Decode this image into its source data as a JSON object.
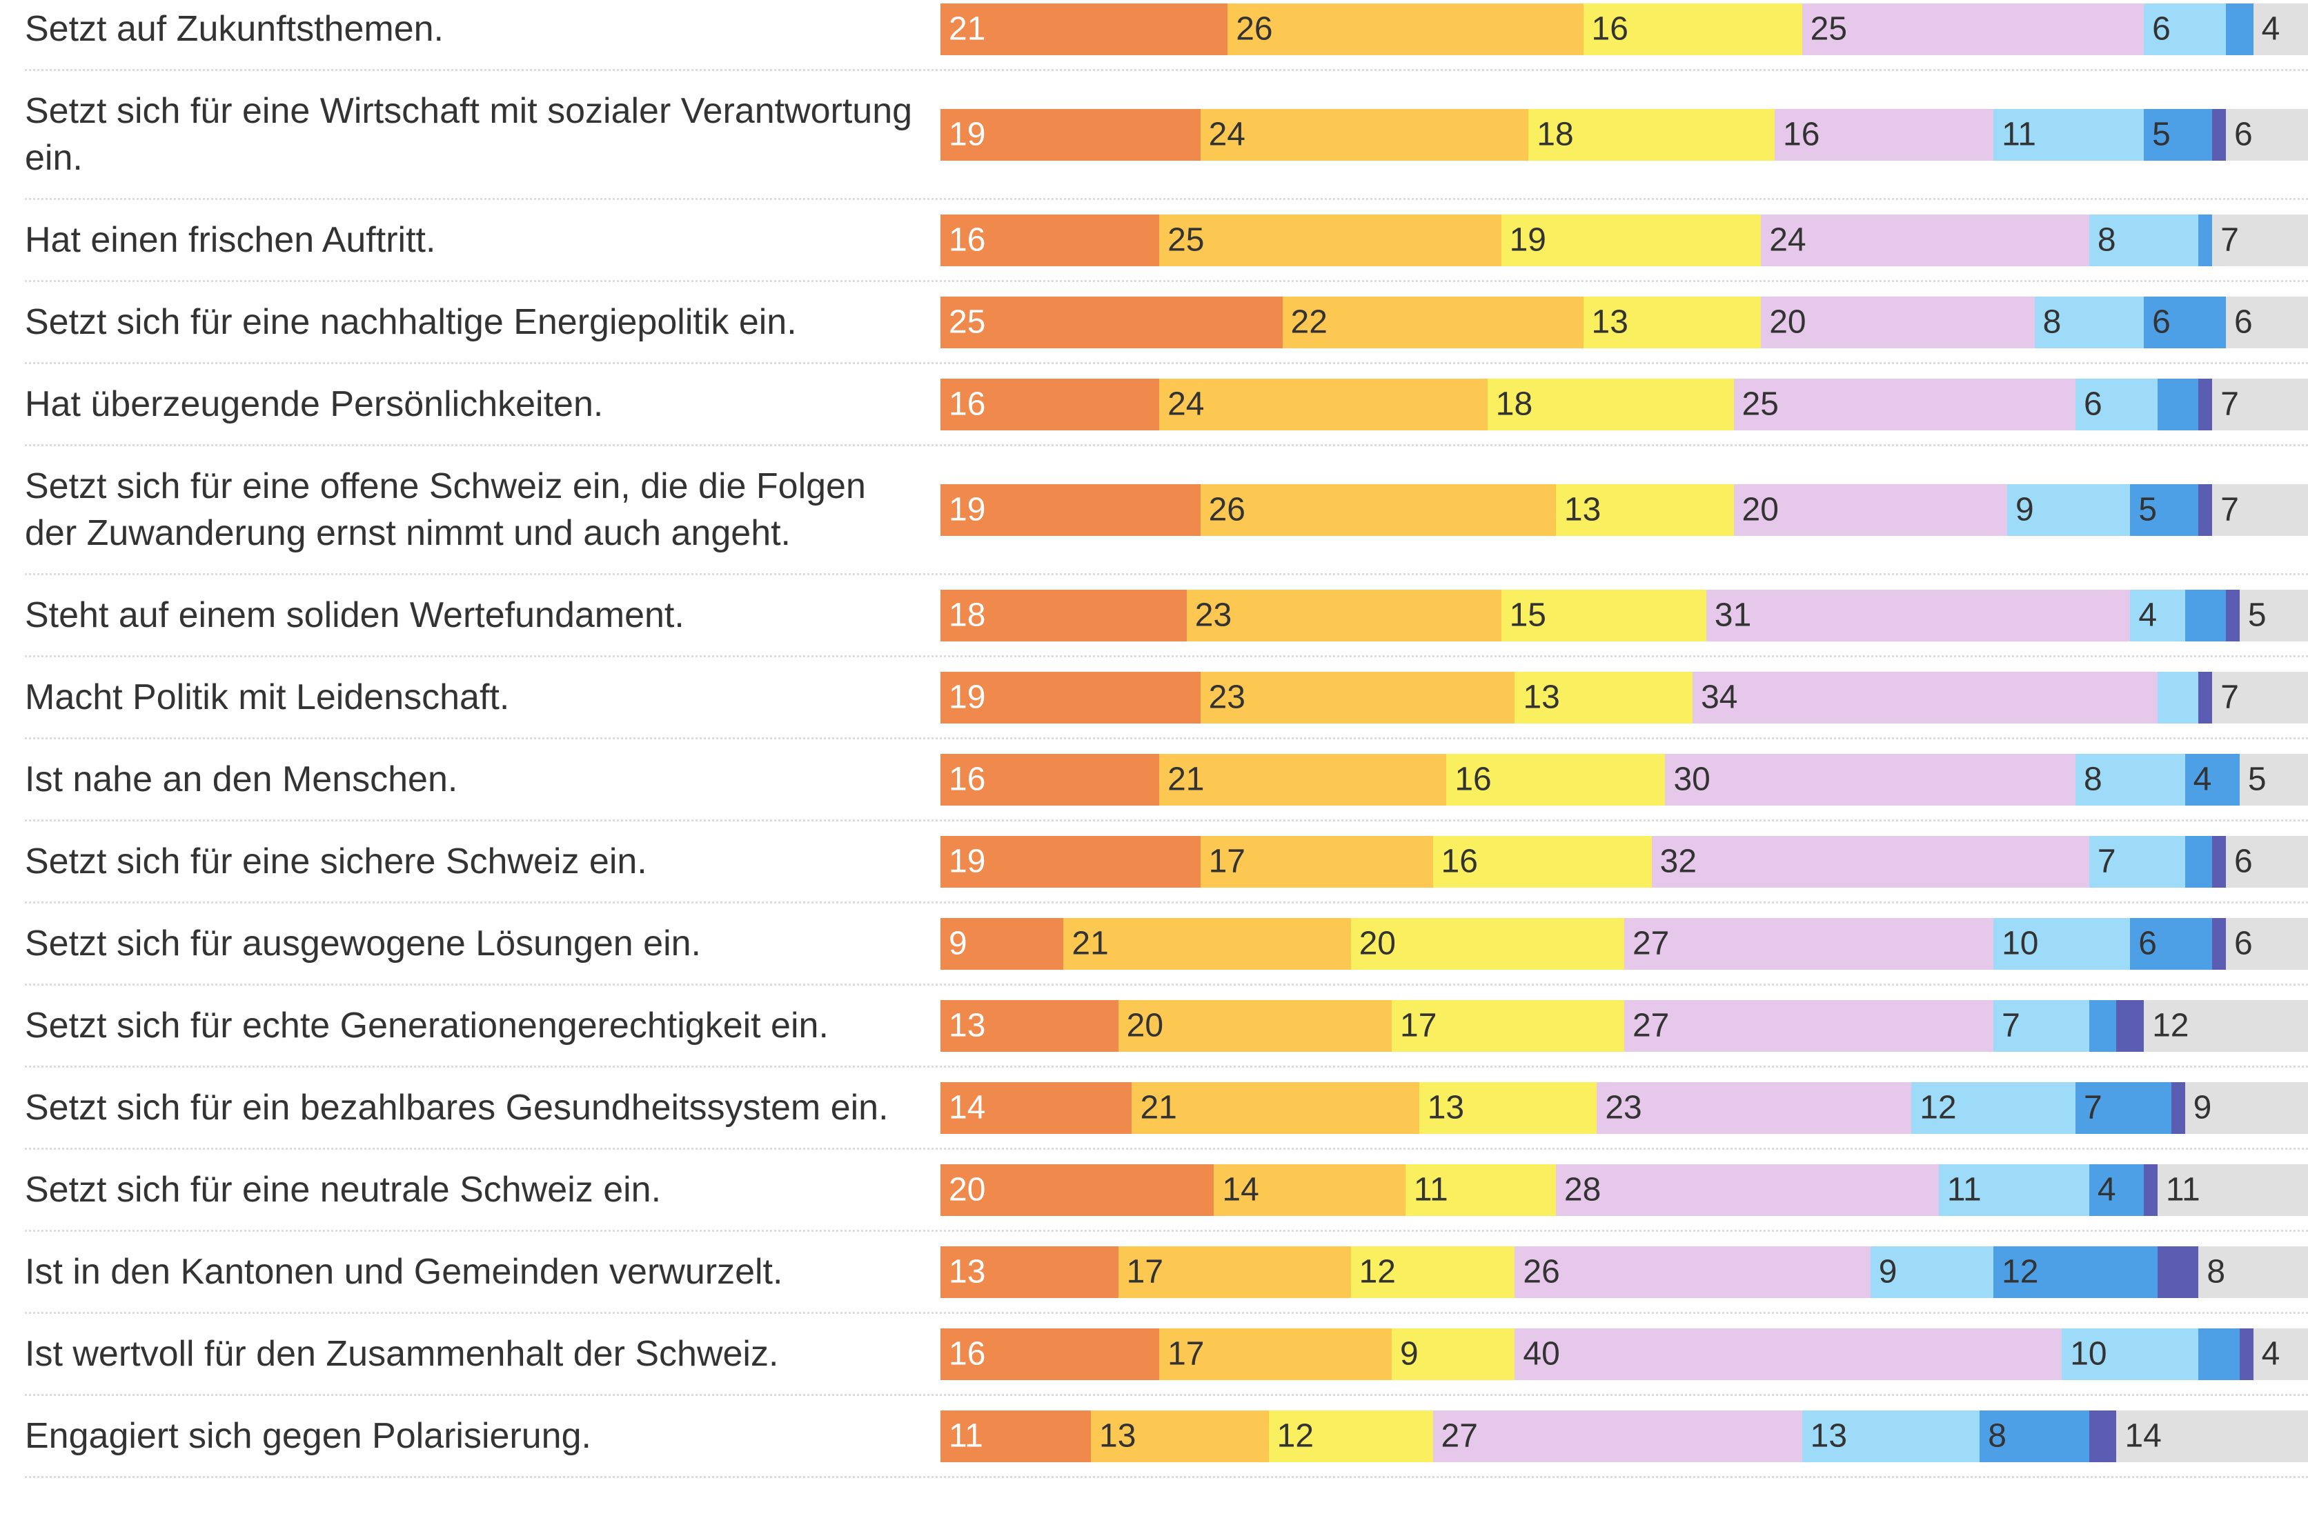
{
  "chart_data": {
    "type": "stacked-bar-horizontal",
    "categories": [
      "Setzt auf Zukunftsthemen.",
      "Setzt sich für eine Wirtschaft mit sozialer Verantwortung ein.",
      "Hat einen frischen Auftritt.",
      "Setzt sich für eine nachhaltige Energiepolitik ein.",
      "Hat überzeugende Persönlichkeiten.",
      "Setzt sich für eine offene Schweiz ein, die die Folgen der Zuwanderung ernst nimmt und auch angeht.",
      "Steht auf einem soliden Wertefundament.",
      "Macht Politik mit Leidenschaft.",
      "Ist nahe an den Menschen.",
      "Setzt sich für eine sichere Schweiz ein.",
      "Setzt sich für ausgewogene Lösungen ein.",
      "Setzt sich für echte Generationengerechtigkeit ein.",
      "Setzt sich für ein bezahlbares Gesundheitssystem ein.",
      "Setzt sich für eine neutrale Schweiz ein.",
      "Ist in den Kantonen und Gemeinden verwurzelt.",
      "Ist wertvoll für den Zusammenhalt der Schweiz.",
      "Engagiert sich gegen Polarisierung."
    ],
    "xlim": [
      0,
      100
    ],
    "series": [
      {
        "color": "#ef8a4c",
        "values": [
          21,
          19,
          16,
          25,
          16,
          19,
          18,
          19,
          16,
          19,
          9,
          13,
          14,
          20,
          13,
          16,
          11
        ]
      },
      {
        "color": "#fdc852",
        "values": [
          26,
          24,
          25,
          22,
          24,
          26,
          23,
          23,
          21,
          17,
          21,
          20,
          21,
          14,
          17,
          17,
          13
        ]
      },
      {
        "color": "#f9ef5f",
        "values": [
          16,
          18,
          19,
          13,
          18,
          13,
          15,
          13,
          16,
          16,
          20,
          17,
          13,
          11,
          12,
          9,
          12
        ]
      },
      {
        "color": "#e6c9ea",
        "values": [
          25,
          16,
          24,
          20,
          25,
          20,
          31,
          34,
          30,
          32,
          27,
          27,
          23,
          28,
          26,
          40,
          27
        ]
      },
      {
        "color": "#9edbf8",
        "values": [
          6,
          11,
          8,
          8,
          6,
          9,
          4,
          3,
          8,
          7,
          10,
          7,
          12,
          11,
          9,
          10,
          13
        ]
      },
      {
        "color": "#4d9fe6",
        "values": [
          2,
          5,
          1,
          6,
          3,
          5,
          3,
          0,
          4,
          2,
          6,
          2,
          7,
          4,
          12,
          3,
          8
        ]
      },
      {
        "color": "#5a5db2",
        "values": [
          0,
          1,
          0,
          0,
          1,
          1,
          1,
          1,
          0,
          1,
          1,
          2,
          1,
          1,
          3,
          1,
          2
        ]
      },
      {
        "color": "#e0e0e0",
        "values": [
          4,
          6,
          7,
          6,
          7,
          7,
          5,
          7,
          5,
          6,
          6,
          12,
          9,
          11,
          8,
          4,
          14
        ]
      }
    ]
  }
}
